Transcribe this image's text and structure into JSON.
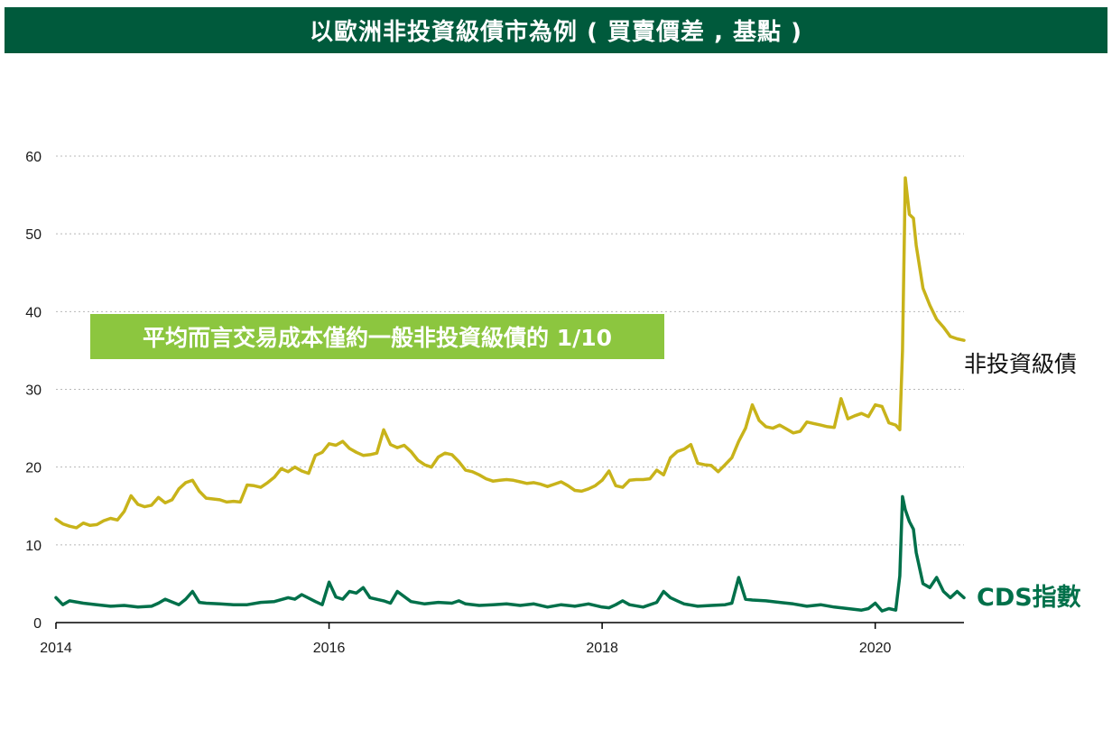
{
  "title": "以歐洲非投資級債市為例 ( 買賣價差 , 基點 )",
  "callout": "平均而言交易成本僅約一般非投資級債的 1/10",
  "colors": {
    "title_bg": "#005a3c",
    "callout_bg": "#8cc63f",
    "high_yield": "#c8b31a",
    "cds": "#00704a",
    "grid": "#b8b8b8"
  },
  "chart_data": {
    "type": "line",
    "title": "以歐洲非投資級債市為例 ( 買賣價差 , 基點 )",
    "xlabel": "",
    "ylabel": "",
    "ylim": [
      0,
      60
    ],
    "xlim": [
      2014,
      2020.65
    ],
    "y_ticks": [
      "0",
      "10",
      "20",
      "30",
      "40",
      "50",
      "60"
    ],
    "x_ticks": [
      "2014",
      "2016",
      "2018",
      "2020"
    ],
    "grid": "horizontal dotted",
    "series": [
      {
        "name": "非投資級債",
        "color": "#c8b31a",
        "x": [
          2014.0,
          2014.05,
          2014.1,
          2014.15,
          2014.2,
          2014.25,
          2014.3,
          2014.35,
          2014.4,
          2014.45,
          2014.5,
          2014.55,
          2014.6,
          2014.65,
          2014.7,
          2014.75,
          2014.8,
          2014.85,
          2014.9,
          2014.95,
          2015.0,
          2015.05,
          2015.1,
          2015.15,
          2015.2,
          2015.25,
          2015.3,
          2015.35,
          2015.4,
          2015.45,
          2015.5,
          2015.55,
          2015.6,
          2015.65,
          2015.7,
          2015.75,
          2015.8,
          2015.85,
          2015.9,
          2015.95,
          2016.0,
          2016.05,
          2016.1,
          2016.15,
          2016.2,
          2016.25,
          2016.3,
          2016.35,
          2016.4,
          2016.45,
          2016.5,
          2016.55,
          2016.6,
          2016.65,
          2016.7,
          2016.75,
          2016.8,
          2016.85,
          2016.9,
          2016.95,
          2017.0,
          2017.05,
          2017.1,
          2017.15,
          2017.2,
          2017.25,
          2017.3,
          2017.35,
          2017.4,
          2017.45,
          2017.5,
          2017.55,
          2017.6,
          2017.65,
          2017.7,
          2017.75,
          2017.8,
          2017.85,
          2017.9,
          2017.95,
          2018.0,
          2018.05,
          2018.1,
          2018.15,
          2018.2,
          2018.25,
          2018.3,
          2018.35,
          2018.4,
          2018.45,
          2018.5,
          2018.55,
          2018.6,
          2018.65,
          2018.7,
          2018.75,
          2018.8,
          2018.85,
          2018.9,
          2018.95,
          2019.0,
          2019.05,
          2019.1,
          2019.15,
          2019.2,
          2019.25,
          2019.3,
          2019.35,
          2019.4,
          2019.45,
          2019.5,
          2019.55,
          2019.6,
          2019.65,
          2019.7,
          2019.75,
          2019.8,
          2019.85,
          2019.9,
          2019.95,
          2020.0,
          2020.05,
          2020.1,
          2020.15,
          2020.18,
          2020.2,
          2020.22,
          2020.25,
          2020.28,
          2020.3,
          2020.35,
          2020.4,
          2020.45,
          2020.5,
          2020.55,
          2020.6,
          2020.65
        ],
        "values": [
          13.3,
          12.7,
          12.4,
          12.2,
          12.8,
          12.5,
          12.6,
          13.1,
          13.4,
          13.2,
          14.3,
          16.3,
          15.2,
          14.9,
          15.1,
          16.1,
          15.4,
          15.8,
          17.2,
          18.0,
          18.3,
          16.9,
          16.0,
          15.9,
          15.8,
          15.5,
          15.6,
          15.5,
          17.7,
          17.6,
          17.4,
          18.0,
          18.7,
          19.8,
          19.4,
          20.0,
          19.5,
          19.2,
          21.5,
          21.9,
          23.0,
          22.8,
          23.3,
          22.4,
          21.9,
          21.5,
          21.6,
          21.8,
          24.8,
          22.9,
          22.5,
          22.8,
          22.0,
          20.9,
          20.3,
          20.0,
          21.3,
          21.8,
          21.6,
          20.7,
          19.6,
          19.4,
          19.0,
          18.5,
          18.2,
          18.3,
          18.4,
          18.3,
          18.1,
          17.9,
          18.0,
          17.8,
          17.5,
          17.8,
          18.1,
          17.6,
          17.0,
          16.9,
          17.2,
          17.6,
          18.3,
          19.5,
          17.6,
          17.4,
          18.3,
          18.4,
          18.4,
          18.5,
          19.6,
          19.0,
          21.2,
          22.0,
          22.3,
          22.9,
          20.5,
          20.3,
          20.2,
          19.4,
          20.3,
          21.2,
          23.3,
          25.0,
          28.0,
          26.0,
          25.2,
          25.0,
          25.4,
          24.9,
          24.4,
          24.6,
          25.8,
          25.6,
          25.4,
          25.2,
          25.1,
          28.8,
          26.2,
          26.6,
          26.9,
          26.5,
          28.0,
          27.8,
          25.7,
          25.4,
          24.8,
          35.0,
          57.2,
          52.5,
          52.0,
          48.5,
          43.0,
          40.8,
          39.0,
          38.0,
          36.8,
          36.5,
          36.3
        ]
      },
      {
        "name": "CDS指數",
        "color": "#00704a",
        "x": [
          2014.0,
          2014.05,
          2014.1,
          2014.2,
          2014.3,
          2014.4,
          2014.5,
          2014.6,
          2014.7,
          2014.75,
          2014.8,
          2014.9,
          2014.95,
          2015.0,
          2015.05,
          2015.1,
          2015.2,
          2015.3,
          2015.4,
          2015.5,
          2015.6,
          2015.7,
          2015.75,
          2015.8,
          2015.9,
          2015.95,
          2016.0,
          2016.05,
          2016.1,
          2016.15,
          2016.2,
          2016.25,
          2016.3,
          2016.4,
          2016.45,
          2016.5,
          2016.6,
          2016.7,
          2016.8,
          2016.9,
          2016.95,
          2017.0,
          2017.1,
          2017.2,
          2017.3,
          2017.4,
          2017.5,
          2017.6,
          2017.7,
          2017.8,
          2017.9,
          2018.0,
          2018.05,
          2018.1,
          2018.15,
          2018.2,
          2018.3,
          2018.4,
          2018.45,
          2018.5,
          2018.55,
          2018.6,
          2018.7,
          2018.8,
          2018.9,
          2018.95,
          2019.0,
          2019.05,
          2019.1,
          2019.2,
          2019.3,
          2019.4,
          2019.5,
          2019.6,
          2019.7,
          2019.8,
          2019.9,
          2019.95,
          2020.0,
          2020.05,
          2020.1,
          2020.15,
          2020.18,
          2020.2,
          2020.22,
          2020.25,
          2020.28,
          2020.3,
          2020.35,
          2020.4,
          2020.45,
          2020.5,
          2020.55,
          2020.6,
          2020.65
        ],
        "values": [
          3.2,
          2.3,
          2.8,
          2.5,
          2.3,
          2.1,
          2.2,
          2.0,
          2.1,
          2.5,
          3.0,
          2.3,
          3.0,
          4.0,
          2.6,
          2.5,
          2.4,
          2.3,
          2.3,
          2.6,
          2.7,
          3.2,
          3.0,
          3.6,
          2.7,
          2.3,
          5.2,
          3.3,
          3.0,
          4.0,
          3.8,
          4.5,
          3.2,
          2.8,
          2.5,
          4.0,
          2.7,
          2.4,
          2.6,
          2.5,
          2.8,
          2.4,
          2.2,
          2.3,
          2.4,
          2.2,
          2.4,
          2.0,
          2.3,
          2.1,
          2.4,
          2.0,
          1.9,
          2.3,
          2.8,
          2.3,
          2.0,
          2.6,
          4.0,
          3.2,
          2.8,
          2.4,
          2.1,
          2.2,
          2.3,
          2.5,
          5.8,
          3.0,
          2.9,
          2.8,
          2.6,
          2.4,
          2.1,
          2.3,
          2.0,
          1.8,
          1.6,
          1.8,
          2.5,
          1.5,
          1.8,
          1.6,
          6.0,
          16.2,
          14.5,
          13.0,
          12.0,
          9.0,
          5.0,
          4.5,
          5.8,
          4.0,
          3.2,
          4.0,
          3.2
        ]
      }
    ]
  },
  "labels": {
    "high_yield": "非投資級債",
    "cds": "CDS指數"
  }
}
